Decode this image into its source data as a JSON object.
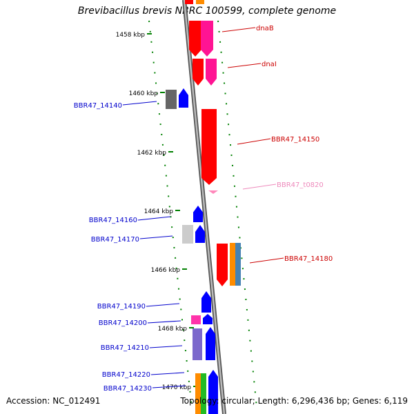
{
  "title": "Brevibacillus brevis NBRC 100599, complete genome",
  "footer": {
    "accession": "Accession: NC_012491",
    "summary": "Topology: circular; Length: 6,296,436 bp; Genes: 6,119"
  },
  "kbp_ticks": [
    {
      "label": "1458 kbp",
      "kbp": 1458
    },
    {
      "label": "1460 kbp",
      "kbp": 1460
    },
    {
      "label": "1462 kbp",
      "kbp": 1462
    },
    {
      "label": "1464 kbp",
      "kbp": 1464
    },
    {
      "label": "1466 kbp",
      "kbp": 1466
    },
    {
      "label": "1468 kbp",
      "kbp": 1468
    },
    {
      "label": "1470 kbp",
      "kbp": 1470
    }
  ],
  "genes_right": [
    {
      "label": "dnaB",
      "color": "#cc0000"
    },
    {
      "label": "dnaI",
      "color": "#cc0000"
    },
    {
      "label": "BBR47_14150",
      "color": "#cc0000"
    },
    {
      "label": "BBR47_t0820",
      "color": "#ee88bb"
    },
    {
      "label": "BBR47_14180",
      "color": "#cc0000"
    }
  ],
  "genes_left": [
    {
      "label": "BBR47_14140",
      "color": "#0000cc"
    },
    {
      "label": "BBR47_14160",
      "color": "#0000cc"
    },
    {
      "label": "BBR47_14170",
      "color": "#0000cc"
    },
    {
      "label": "BBR47_14190",
      "color": "#0000cc"
    },
    {
      "label": "BBR47_14200",
      "color": "#0000cc"
    },
    {
      "label": "BBR47_14210",
      "color": "#0000cc"
    },
    {
      "label": "BBR47_14220",
      "color": "#0000cc"
    },
    {
      "label": "BBR47_14230",
      "color": "#0000cc"
    }
  ],
  "colors": {
    "forward_strand": "#0000ff",
    "reverse_strand": "#ff0000",
    "backbone": "#888888",
    "tick": "#008000",
    "magenta": "#ff1493",
    "orange": "#ff8c00",
    "steelblue": "#4682b4",
    "gray": "#666666",
    "lightgray": "#cccccc",
    "pink": "#ff33aa",
    "purple": "#7b68cc",
    "green": "#22bb22"
  }
}
